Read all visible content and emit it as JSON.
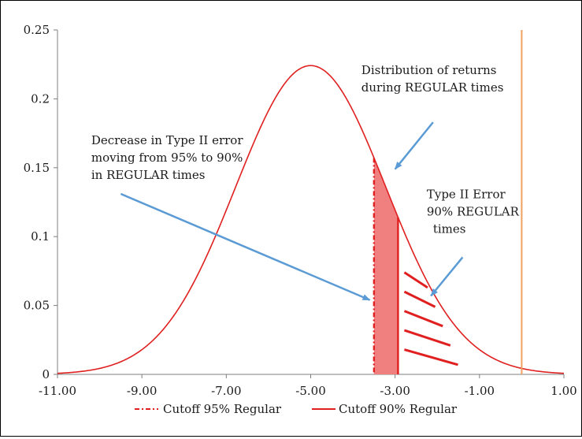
{
  "chart_data": {
    "type": "line",
    "title": "",
    "xlabel": "",
    "ylabel": "",
    "xlim": [
      -11,
      1
    ],
    "ylim": [
      0,
      0.25
    ],
    "x_ticks": [
      "-11.00",
      "-9.00",
      "-7.00",
      "-5.00",
      "-3.00",
      "-1.00",
      "1.00"
    ],
    "y_ticks": [
      "0",
      "0.05",
      "0.1",
      "0.15",
      "0.2",
      "0.25"
    ],
    "grid": false,
    "series": [
      {
        "kind": "normal-density-curve",
        "mean": -5.0,
        "std": 1.78,
        "color": "#e02020",
        "note_curve_peak": 0.224
      }
    ],
    "vertical_lines": [
      {
        "name": "Cutoff 95% Regular",
        "x": -3.5,
        "style": "dash-dot",
        "color": "#e02020"
      },
      {
        "name": "Cutoff 90% Regular",
        "x": -2.93,
        "style": "solid",
        "color": "#e02020"
      },
      {
        "x": 0.0,
        "style": "solid",
        "color": "#f0a060"
      }
    ],
    "shaded_region": {
      "from": -3.5,
      "to": -2.93,
      "color": "#f08080"
    },
    "hatched_region": {
      "from": -2.93,
      "to": -1.0
    },
    "annotations": [
      {
        "lines": [
          "Distribution of returns",
          "during REGULAR times"
        ]
      },
      {
        "lines": [
          "Decrease in Type II error",
          "moving from 95% to 90%",
          "in REGULAR times"
        ]
      },
      {
        "lines": [
          "Type II Error",
          "90% REGULAR",
          "times"
        ]
      }
    ],
    "legend": {
      "placement": "bottom",
      "entries": [
        {
          "label": "Cutoff 95% Regular",
          "style": "dash-dot"
        },
        {
          "label": "Cutoff 90% Regular",
          "style": "solid"
        }
      ]
    },
    "colors": {
      "curve": "#e02020",
      "shade": "#f08080",
      "arrow": "#5b9bd5",
      "vline": "#f0a060",
      "axis": "#7f7f7f"
    }
  }
}
